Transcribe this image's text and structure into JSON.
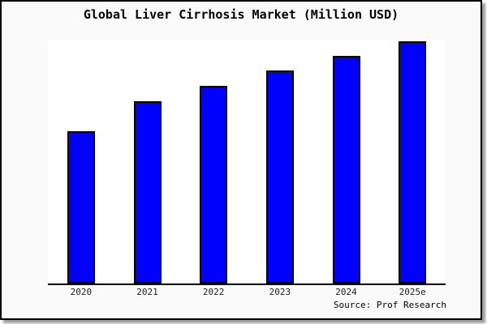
{
  "header": {
    "title": "Global Liver Cirrhosis Market (Million USD)"
  },
  "footer": {
    "source": "Source: Prof Research"
  },
  "colors": {
    "bar_fill": "#0000ff",
    "bar_border": "#000000",
    "card_background": "#fafafa",
    "plot_background": "#ffffff",
    "axis_line": "#000000"
  },
  "chart_data": {
    "type": "bar",
    "title": "Global Liver Cirrhosis Market (Million USD)",
    "categories": [
      "2020",
      "2021",
      "2022",
      "2023",
      "2024",
      "2025e"
    ],
    "values": [
      188,
      225,
      244,
      263,
      281,
      299
    ],
    "xlabel": "",
    "ylabel": "",
    "ylim": [
      0,
      300
    ],
    "y_axis_visible": false,
    "y_tick_labels": [],
    "gridlines": false,
    "legend_position": "none",
    "annotation": "Source: Prof Research",
    "value_scale_note": "y-axis is unlabeled in the image; values are relative bar heights on a 0-300 scale"
  }
}
